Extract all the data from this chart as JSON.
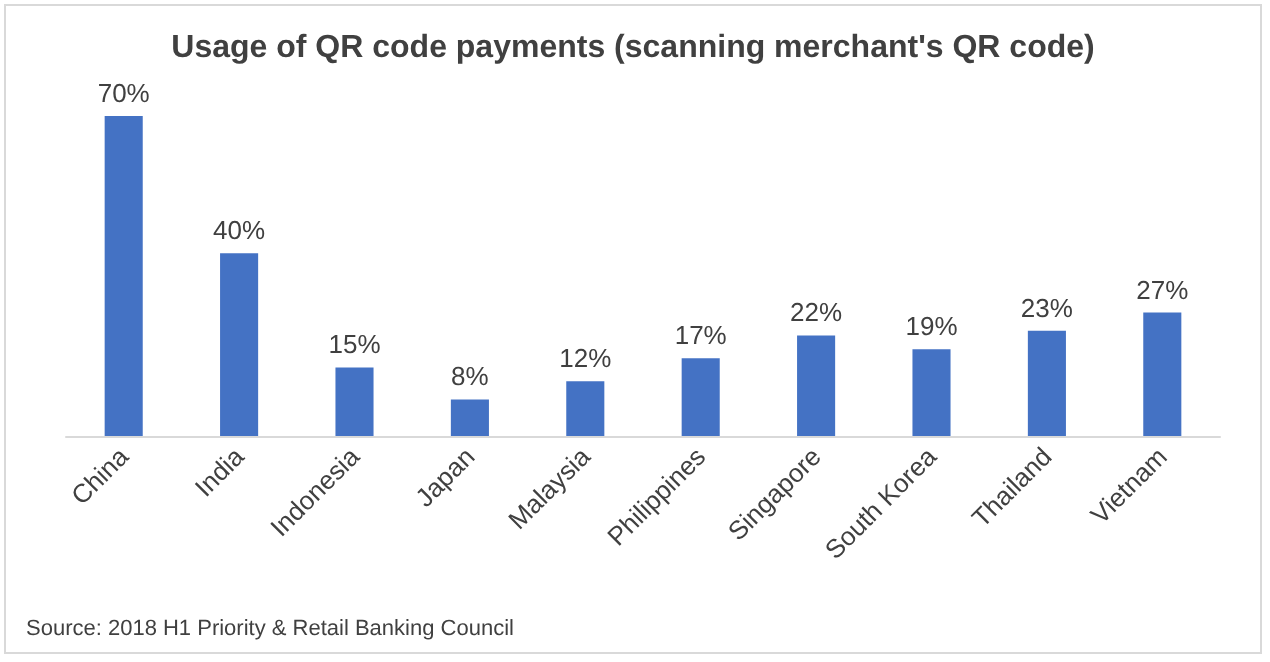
{
  "chart_data": {
    "type": "bar",
    "title": "Usage of QR code payments (scanning merchant's QR code)",
    "categories": [
      "China",
      "India",
      "Indonesia",
      "Japan",
      "Malaysia",
      "Philippines",
      "Singapore",
      "South Korea",
      "Thailand",
      "Vietnam"
    ],
    "values": [
      70,
      40,
      15,
      8,
      12,
      17,
      22,
      19,
      23,
      27
    ],
    "value_labels": [
      "70%",
      "40%",
      "15%",
      "8%",
      "12%",
      "17%",
      "22%",
      "19%",
      "23%",
      "27%"
    ],
    "color": "#4472c4",
    "grid": false,
    "annotations": [
      "Source: 2018 H1 Priority & Retail Banking Council"
    ]
  }
}
